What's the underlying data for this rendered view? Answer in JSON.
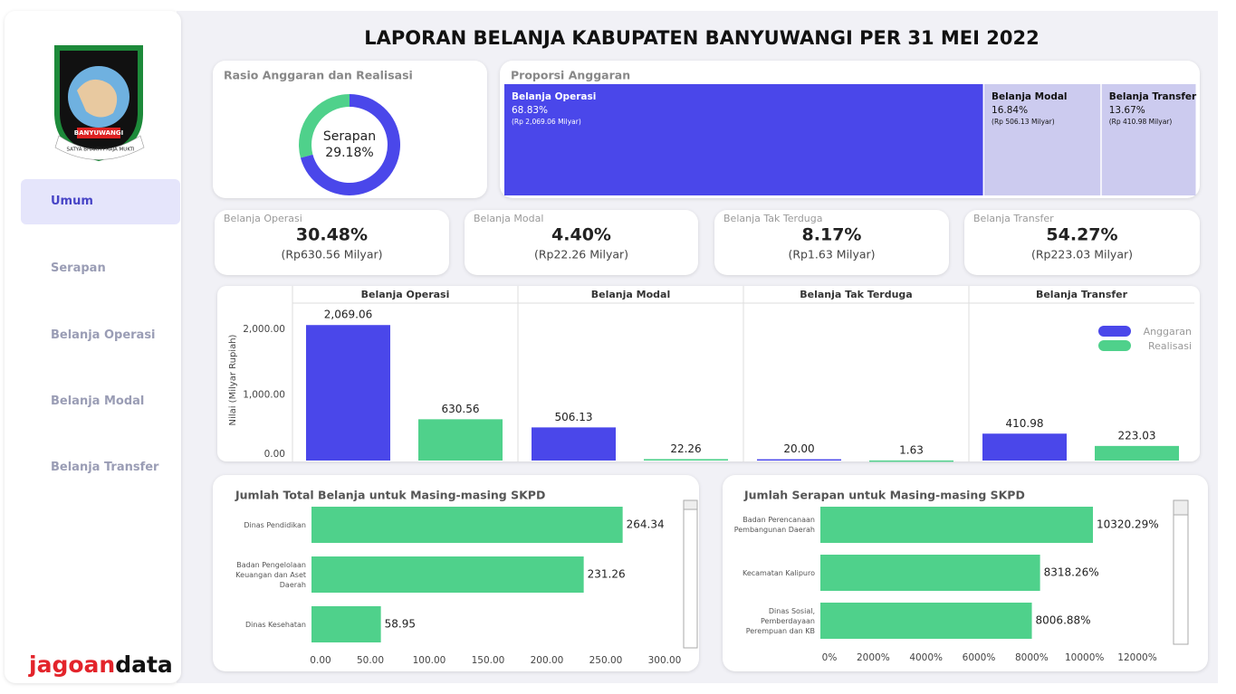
{
  "sidebar": {
    "logo_title": "BANYUWANGI",
    "logo_motto": "SATYA BHAKTI PRAJA MUKTI",
    "menu": [
      "Umum",
      "Serapan",
      "Belanja Operasi",
      "Belanja Modal",
      "Belanja Transfer"
    ],
    "brand": [
      "jagoan",
      "data"
    ]
  },
  "title": "LAPORAN BELANJA KABUPATEN BANYUWANGI PER 31 MEI 2022",
  "kpis": [
    {
      "label": "Belanja Operasi",
      "value": "30.48%",
      "detail": "(Rp630.56 Milyar)"
    },
    {
      "label": "Belanja Modal",
      "value": "4.40%",
      "detail": "(Rp22.26 Milyar)"
    },
    {
      "label": "Belanja Tak Terduga",
      "value": "8.17%",
      "detail": "(Rp1.63 Milyar)"
    },
    {
      "label": "Belanja Transfer",
      "value": "54.27%",
      "detail": "(Rp223.03 Milyar)"
    }
  ],
  "chart_data": [
    {
      "type": "donut",
      "title": "Rasio Anggaran dan Realisasi",
      "center_label": "Serapan",
      "values": [
        29.18,
        70.82
      ],
      "value_labels": [
        "29.18%",
        null
      ],
      "colors": [
        "#4fd18b",
        "#4a47ea"
      ]
    },
    {
      "type": "treemap",
      "title": "Proporsi Anggaran",
      "categories": [
        "Belanja Operasi",
        "Belanja Modal",
        "Belanja Transfer"
      ],
      "values": [
        68.83,
        16.84,
        13.67
      ],
      "value_labels": [
        "68.83%",
        "16.84%",
        "13.67%"
      ],
      "notes": [
        "(Rp 2,069.06 Milyar)",
        "(Rp 506.13 Milyar)",
        "(Rp 410.98 Milyar)"
      ],
      "colors": [
        "#4a47ea",
        "#cccbef",
        "#cccbef"
      ]
    },
    {
      "type": "bar",
      "panels": [
        "Belanja Operasi",
        "Belanja Modal",
        "Belanja Tak Terduga",
        "Belanja Transfer"
      ],
      "y_label": "Nilai (Milyar Rupiah)",
      "series": [
        {
          "name": "Anggaran",
          "color": "#4a47ea",
          "values": [
            2069.06,
            506.13,
            20.0,
            410.98
          ],
          "value_labels": [
            "2,069.06",
            "506.13",
            "20.00",
            "410.98"
          ]
        },
        {
          "name": "Realisasi",
          "color": "#4fd18b",
          "values": [
            630.56,
            22.26,
            1.63,
            223.03
          ],
          "value_labels": [
            "630.56",
            "22.26",
            "1.63",
            "223.03"
          ]
        }
      ],
      "ylim": [
        0,
        2390
      ],
      "yticks": [
        {
          "value": 0,
          "label": "0.00"
        },
        {
          "value": 1000,
          "label": "1,000.00"
        },
        {
          "value": 2000,
          "label": "2,000.00"
        }
      ],
      "grid": false,
      "legend": "top-right"
    },
    {
      "type": "hbar",
      "title": "Jumlah Total Belanja untuk Masing-masing SKPD",
      "categories": [
        "Dinas Pendidikan",
        "Badan Pengelolaan Keuangan dan Aset Daerah",
        "Dinas Kesehatan"
      ],
      "values": [
        264.34,
        231.26,
        58.95
      ],
      "color": "#4fd18b",
      "xlim": [
        0,
        300
      ],
      "xticks": [
        {
          "value": 0,
          "label": "0.00"
        },
        {
          "value": 50,
          "label": "50.00"
        },
        {
          "value": 100,
          "label": "100.00"
        },
        {
          "value": 150,
          "label": "150.00"
        },
        {
          "value": 200,
          "label": "200.00"
        },
        {
          "value": 250,
          "label": "250.00"
        },
        {
          "value": 300,
          "label": "300.00"
        }
      ]
    },
    {
      "type": "hbar",
      "title": "Jumlah Serapan untuk Masing-masing SKPD",
      "categories": [
        "Badan Perencanaan Pembangunan Daerah",
        "Kecamatan Kalipuro",
        "Dinas Sosial, Pemberdayaan Perempuan dan KB"
      ],
      "values": [
        10320.29,
        8318.26,
        8006.88
      ],
      "value_labels": [
        "10320.29%",
        "8318.26%",
        "8006.88%"
      ],
      "color": "#4fd18b",
      "xlim": [
        0,
        12000
      ],
      "xticks": [
        {
          "value": 0,
          "label": "0%"
        },
        {
          "value": 2000,
          "label": "2000%"
        },
        {
          "value": 4000,
          "label": "4000%"
        },
        {
          "value": 6000,
          "label": "6000%"
        },
        {
          "value": 8000,
          "label": "8000%"
        },
        {
          "value": 10000,
          "label": "10000%"
        },
        {
          "value": 12000,
          "label": "12000%"
        }
      ]
    }
  ]
}
